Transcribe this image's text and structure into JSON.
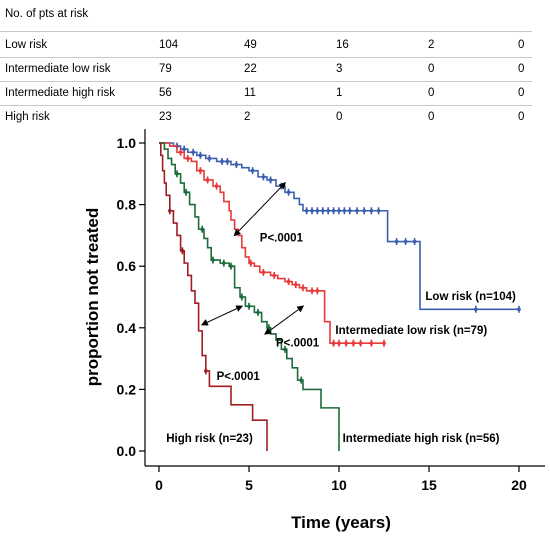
{
  "risk_table": {
    "header": "No. of pts at risk",
    "rows": [
      {
        "label": "Low risk",
        "values": [
          "104",
          "49",
          "16",
          "2",
          "0"
        ]
      },
      {
        "label": "Intermediate low risk",
        "values": [
          "79",
          "22",
          "3",
          "0",
          "0"
        ]
      },
      {
        "label": "Intermediate high risk",
        "values": [
          "56",
          "11",
          "1",
          "0",
          "0"
        ]
      },
      {
        "label": "High risk",
        "values": [
          "23",
          "2",
          "0",
          "0",
          "0"
        ]
      }
    ]
  },
  "chart_data": {
    "type": "line",
    "subtype": "kaplan-meier step",
    "xlabel": "Time (years)",
    "ylabel": "proportion not treated",
    "xlim": [
      0,
      20
    ],
    "ylim": [
      0,
      1.0
    ],
    "xticks": [
      0,
      5,
      10,
      15,
      20
    ],
    "yticks": [
      0.0,
      0.2,
      0.4,
      0.6,
      0.8,
      1.0
    ],
    "grid": false,
    "legend": "none",
    "series": [
      {
        "name": "Low risk (n=104)",
        "color": "#3b5fb0",
        "steps": [
          [
            0,
            1.0
          ],
          [
            0.8,
            0.99
          ],
          [
            1.2,
            0.98
          ],
          [
            1.6,
            0.97
          ],
          [
            2.1,
            0.96
          ],
          [
            2.6,
            0.95
          ],
          [
            3.2,
            0.94
          ],
          [
            4.0,
            0.93
          ],
          [
            4.6,
            0.92
          ],
          [
            5.0,
            0.91
          ],
          [
            5.5,
            0.89
          ],
          [
            6.0,
            0.88
          ],
          [
            6.5,
            0.86
          ],
          [
            7.0,
            0.84
          ],
          [
            7.5,
            0.82
          ],
          [
            7.8,
            0.8
          ],
          [
            8.0,
            0.78
          ],
          [
            12.5,
            0.78
          ],
          [
            12.7,
            0.68
          ],
          [
            14.3,
            0.68
          ],
          [
            14.5,
            0.46
          ],
          [
            20.0,
            0.46
          ]
        ],
        "censored": [
          1.0,
          1.4,
          1.9,
          2.3,
          2.8,
          3.5,
          3.8,
          4.3,
          5.2,
          5.8,
          6.2,
          6.8,
          7.2,
          8.2,
          8.5,
          8.8,
          9.1,
          9.4,
          9.7,
          10.0,
          10.3,
          10.6,
          11.0,
          11.4,
          11.8,
          12.2,
          13.2,
          13.7,
          14.2,
          17.6,
          20.0
        ]
      },
      {
        "name": "Intermediate low risk (n=79)",
        "color": "#e83a3a",
        "steps": [
          [
            0,
            1.0
          ],
          [
            0.6,
            0.99
          ],
          [
            1.0,
            0.97
          ],
          [
            1.4,
            0.95
          ],
          [
            1.8,
            0.94
          ],
          [
            2.1,
            0.91
          ],
          [
            2.5,
            0.88
          ],
          [
            3.0,
            0.86
          ],
          [
            3.4,
            0.84
          ],
          [
            3.6,
            0.81
          ],
          [
            3.9,
            0.78
          ],
          [
            4.0,
            0.75
          ],
          [
            4.2,
            0.72
          ],
          [
            4.4,
            0.7
          ],
          [
            4.6,
            0.66
          ],
          [
            4.8,
            0.63
          ],
          [
            5.0,
            0.61
          ],
          [
            5.3,
            0.6
          ],
          [
            5.6,
            0.58
          ],
          [
            6.2,
            0.57
          ],
          [
            6.6,
            0.56
          ],
          [
            7.0,
            0.55
          ],
          [
            7.4,
            0.54
          ],
          [
            7.8,
            0.53
          ],
          [
            8.2,
            0.52
          ],
          [
            9.0,
            0.52
          ],
          [
            9.2,
            0.42
          ],
          [
            9.5,
            0.35
          ],
          [
            12.5,
            0.35
          ]
        ],
        "censored": [
          1.2,
          1.6,
          2.3,
          2.7,
          3.2,
          5.1,
          5.8,
          6.4,
          7.2,
          7.6,
          8.0,
          8.5,
          8.8,
          9.7,
          10.0,
          10.4,
          10.8,
          11.2,
          11.8,
          12.5
        ]
      },
      {
        "name": "Intermediate high risk (n=56)",
        "color": "#1d6b3a",
        "steps": [
          [
            0,
            1.0
          ],
          [
            0.3,
            0.98
          ],
          [
            0.5,
            0.95
          ],
          [
            0.7,
            0.93
          ],
          [
            0.9,
            0.9
          ],
          [
            1.2,
            0.87
          ],
          [
            1.4,
            0.84
          ],
          [
            1.7,
            0.8
          ],
          [
            2.0,
            0.76
          ],
          [
            2.2,
            0.72
          ],
          [
            2.5,
            0.69
          ],
          [
            2.7,
            0.66
          ],
          [
            2.9,
            0.62
          ],
          [
            3.4,
            0.61
          ],
          [
            3.9,
            0.6
          ],
          [
            4.2,
            0.53
          ],
          [
            4.5,
            0.5
          ],
          [
            4.8,
            0.47
          ],
          [
            5.3,
            0.45
          ],
          [
            5.7,
            0.42
          ],
          [
            6.0,
            0.4
          ],
          [
            6.2,
            0.38
          ],
          [
            6.5,
            0.36
          ],
          [
            6.8,
            0.33
          ],
          [
            7.1,
            0.3
          ],
          [
            7.4,
            0.27
          ],
          [
            7.7,
            0.23
          ],
          [
            8.0,
            0.2
          ],
          [
            8.8,
            0.2
          ],
          [
            9.0,
            0.14
          ],
          [
            9.8,
            0.14
          ],
          [
            10.0,
            0.0
          ]
        ],
        "censored": [
          1.0,
          1.5,
          2.4,
          3.0,
          3.6,
          4.0,
          4.6,
          5.0,
          5.5,
          6.1,
          7.0,
          7.9
        ]
      },
      {
        "name": "High risk (n=23)",
        "color": "#a01d20",
        "steps": [
          [
            0,
            1.0
          ],
          [
            0.1,
            0.96
          ],
          [
            0.2,
            0.91
          ],
          [
            0.3,
            0.87
          ],
          [
            0.4,
            0.83
          ],
          [
            0.6,
            0.78
          ],
          [
            0.8,
            0.74
          ],
          [
            1.0,
            0.7
          ],
          [
            1.2,
            0.65
          ],
          [
            1.4,
            0.61
          ],
          [
            1.6,
            0.57
          ],
          [
            1.8,
            0.52
          ],
          [
            2.0,
            0.48
          ],
          [
            2.2,
            0.39
          ],
          [
            2.4,
            0.31
          ],
          [
            2.6,
            0.26
          ],
          [
            2.8,
            0.21
          ],
          [
            3.8,
            0.21
          ],
          [
            4.0,
            0.15
          ],
          [
            5.0,
            0.15
          ],
          [
            5.2,
            0.1
          ],
          [
            5.9,
            0.1
          ],
          [
            6.0,
            0.0
          ]
        ],
        "censored": [
          0.6,
          1.3,
          2.6
        ]
      }
    ],
    "annotations": [
      {
        "text": "P<.0001",
        "x": 5.6,
        "y": 0.68
      },
      {
        "text": "P<.0001",
        "x": 6.5,
        "y": 0.34
      },
      {
        "text": "P<.0001",
        "x": 3.2,
        "y": 0.23
      },
      {
        "text": "High risk (n=23)",
        "x": 0.4,
        "y": 0.03
      },
      {
        "text": "Intermediate high risk (n=56)",
        "x": 10.2,
        "y": 0.03
      },
      {
        "text": "Intermediate low risk (n=79)",
        "x": 9.8,
        "y": 0.38
      },
      {
        "text": "Low risk (n=104)",
        "x": 14.8,
        "y": 0.49
      }
    ],
    "arrows": [
      {
        "from": [
          4.2,
          0.7
        ],
        "to": [
          7.0,
          0.87
        ]
      },
      {
        "from": [
          2.4,
          0.41
        ],
        "to": [
          4.6,
          0.47
        ]
      },
      {
        "from": [
          5.9,
          0.38
        ],
        "to": [
          8.0,
          0.47
        ]
      }
    ]
  }
}
